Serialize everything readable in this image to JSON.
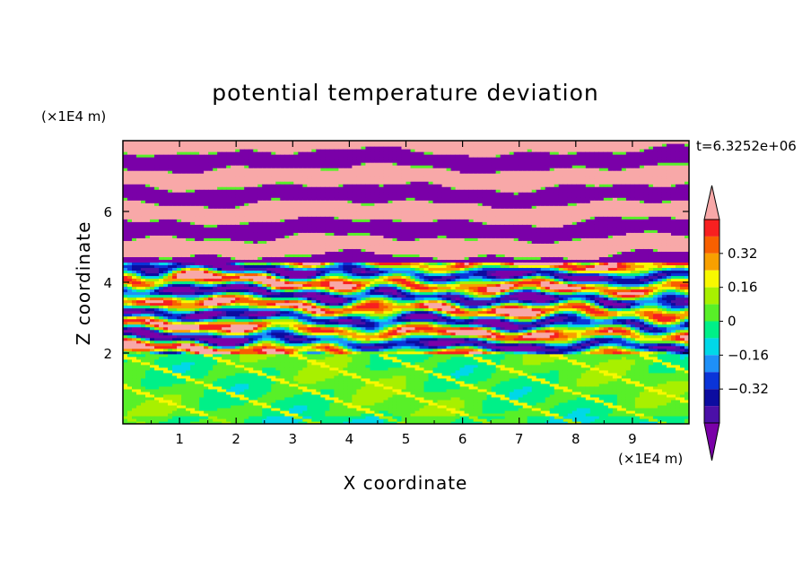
{
  "chart_data": {
    "type": "heatmap",
    "title": "potential temperature deviation",
    "xlabel": "X coordinate",
    "ylabel": "Z coordinate",
    "x_unit": "(×1E4 m)",
    "y_unit": "(×1E4 m)",
    "time_label": "t=6.3252e+06",
    "xlim": [
      0,
      10
    ],
    "ylim": [
      0,
      8
    ],
    "x_ticks": [
      "1",
      "2",
      "3",
      "4",
      "5",
      "6",
      "7",
      "8",
      "9"
    ],
    "y_ticks": [
      "2",
      "4",
      "6"
    ],
    "grid": false,
    "colorbar": {
      "levels": [
        -0.48,
        -0.4,
        -0.32,
        -0.24,
        -0.16,
        -0.08,
        0,
        0.08,
        0.16,
        0.24,
        0.32,
        0.4,
        0.48
      ],
      "colors": [
        "#7a00a8",
        "#4b10a8",
        "#0c0ca0",
        "#0a34d8",
        "#1e90f8",
        "#00d8e8",
        "#00f088",
        "#58f028",
        "#a8f000",
        "#f8f800",
        "#f8a000",
        "#f86000",
        "#f82020",
        "#f8a8a8"
      ],
      "tick_labels": [
        "0.32",
        "0.16",
        "0",
        "−0.16",
        "−0.32"
      ],
      "extend": "both"
    },
    "description_bands": [
      {
        "z_range": [
          0,
          2
        ],
        "dominant_values": [
          -0.08,
          0.08
        ],
        "character": "smooth green/cyan"
      },
      {
        "z_range": [
          2,
          4.5
        ],
        "dominant_values": [
          -0.48,
          0.48
        ],
        "character": "turbulent mixed layers"
      },
      {
        "z_range": [
          4.5,
          8
        ],
        "dominant_values": [
          -0.48,
          0.48
        ],
        "character": "alternating pink/purple horizontal layers"
      }
    ]
  }
}
